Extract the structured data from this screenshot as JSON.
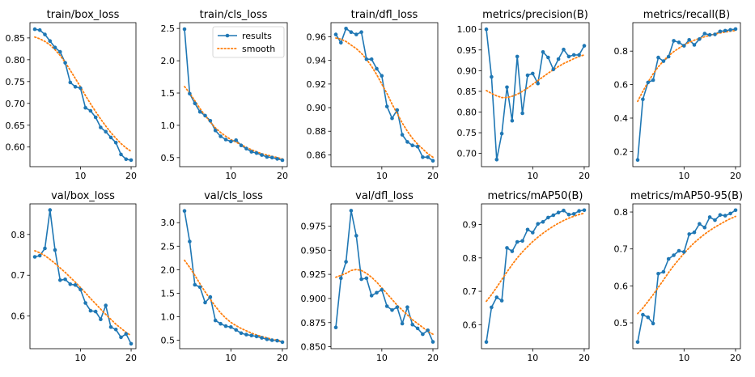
{
  "legend": {
    "results_label": "results",
    "smooth_label": "smooth"
  },
  "colors": {
    "results": "#1f77b4",
    "smooth": "#ff7f0e",
    "axes": "#000000",
    "background": "#ffffff"
  },
  "chart_data": [
    {
      "type": "line",
      "title": "train/box_loss",
      "x": [
        1,
        2,
        3,
        4,
        5,
        6,
        7,
        8,
        9,
        10,
        11,
        12,
        13,
        14,
        15,
        16,
        17,
        18,
        19,
        20
      ],
      "series": [
        {
          "name": "results",
          "values": [
            0.87,
            0.868,
            0.858,
            0.843,
            0.828,
            0.818,
            0.793,
            0.748,
            0.738,
            0.735,
            0.69,
            0.683,
            0.668,
            0.645,
            0.635,
            0.622,
            0.61,
            0.583,
            0.572,
            0.57
          ]
        },
        {
          "name": "smooth",
          "values": [
            0.852,
            0.848,
            0.842,
            0.834,
            0.823,
            0.81,
            0.794,
            0.776,
            0.757,
            0.738,
            0.718,
            0.699,
            0.681,
            0.664,
            0.648,
            0.633,
            0.62,
            0.608,
            0.598,
            0.59
          ]
        }
      ],
      "xlim": [
        0.05,
        20.95
      ],
      "ylim": [
        0.555,
        0.885
      ],
      "xticks": [
        10,
        20
      ],
      "yticks": [
        0.6,
        0.65,
        0.7,
        0.75,
        0.8,
        0.85
      ],
      "yticklabels": [
        "0.60",
        "0.65",
        "0.70",
        "0.75",
        "0.80",
        "0.85"
      ],
      "grid": false
    },
    {
      "type": "line",
      "title": "train/cls_loss",
      "legend_position": "top-right",
      "x": [
        1,
        2,
        3,
        4,
        5,
        6,
        7,
        8,
        9,
        10,
        11,
        12,
        13,
        14,
        15,
        16,
        17,
        18,
        19,
        20
      ],
      "series": [
        {
          "name": "results",
          "values": [
            2.49,
            1.49,
            1.34,
            1.21,
            1.15,
            1.07,
            0.92,
            0.83,
            0.78,
            0.75,
            0.77,
            0.69,
            0.64,
            0.59,
            0.57,
            0.54,
            0.51,
            0.5,
            0.48,
            0.46
          ]
        },
        {
          "name": "smooth",
          "values": [
            1.6,
            1.5,
            1.38,
            1.26,
            1.15,
            1.05,
            0.96,
            0.89,
            0.83,
            0.78,
            0.74,
            0.7,
            0.66,
            0.62,
            0.59,
            0.56,
            0.54,
            0.52,
            0.5,
            0.48
          ]
        }
      ],
      "xlim": [
        0.05,
        20.95
      ],
      "ylim": [
        0.36,
        2.59
      ],
      "xticks": [
        10,
        20
      ],
      "yticks": [
        0.5,
        1.0,
        1.5,
        2.0,
        2.5
      ],
      "yticklabels": [
        "0.5",
        "1.0",
        "1.5",
        "2.0",
        "2.5"
      ],
      "grid": false
    },
    {
      "type": "line",
      "title": "train/dfl_loss",
      "x": [
        1,
        2,
        3,
        4,
        5,
        6,
        7,
        8,
        9,
        10,
        11,
        12,
        13,
        14,
        15,
        16,
        17,
        18,
        19,
        20
      ],
      "series": [
        {
          "name": "results",
          "values": [
            0.962,
            0.955,
            0.967,
            0.964,
            0.962,
            0.964,
            0.941,
            0.941,
            0.933,
            0.927,
            0.901,
            0.891,
            0.898,
            0.877,
            0.871,
            0.868,
            0.867,
            0.858,
            0.858,
            0.855
          ]
        },
        {
          "name": "smooth",
          "values": [
            0.959,
            0.958,
            0.956,
            0.953,
            0.95,
            0.946,
            0.941,
            0.935,
            0.928,
            0.92,
            0.912,
            0.903,
            0.895,
            0.887,
            0.88,
            0.874,
            0.869,
            0.865,
            0.861,
            0.858
          ]
        }
      ],
      "xlim": [
        0.05,
        20.95
      ],
      "ylim": [
        0.85,
        0.972
      ],
      "xticks": [
        10,
        20
      ],
      "yticks": [
        0.86,
        0.88,
        0.9,
        0.92,
        0.94,
        0.96
      ],
      "yticklabels": [
        "0.86",
        "0.88",
        "0.90",
        "0.92",
        "0.94",
        "0.96"
      ],
      "grid": false
    },
    {
      "type": "line",
      "title": "metrics/precision(B)",
      "x": [
        1,
        2,
        3,
        4,
        5,
        6,
        7,
        8,
        9,
        10,
        11,
        12,
        13,
        14,
        15,
        16,
        17,
        18,
        19,
        20
      ],
      "series": [
        {
          "name": "results",
          "values": [
            1.0,
            0.885,
            0.685,
            0.748,
            0.86,
            0.779,
            0.934,
            0.797,
            0.889,
            0.893,
            0.869,
            0.945,
            0.932,
            0.903,
            0.928,
            0.951,
            0.934,
            0.938,
            0.938,
            0.96
          ]
        },
        {
          "name": "smooth",
          "values": [
            0.852,
            0.845,
            0.839,
            0.835,
            0.835,
            0.838,
            0.843,
            0.85,
            0.858,
            0.867,
            0.876,
            0.885,
            0.894,
            0.902,
            0.91,
            0.917,
            0.923,
            0.929,
            0.934,
            0.938
          ]
        }
      ],
      "xlim": [
        0.05,
        20.95
      ],
      "ylim": [
        0.668,
        1.016
      ],
      "xticks": [
        10,
        20
      ],
      "yticks": [
        0.7,
        0.75,
        0.8,
        0.85,
        0.9,
        0.95,
        1.0
      ],
      "yticklabels": [
        "0.70",
        "0.75",
        "0.80",
        "0.85",
        "0.90",
        "0.95",
        "1.00"
      ],
      "grid": false
    },
    {
      "type": "line",
      "title": "metrics/recall(B)",
      "x": [
        1,
        2,
        3,
        4,
        5,
        6,
        7,
        8,
        9,
        10,
        11,
        12,
        13,
        14,
        15,
        16,
        17,
        18,
        19,
        20
      ],
      "series": [
        {
          "name": "results",
          "values": [
            0.15,
            0.512,
            0.613,
            0.627,
            0.762,
            0.74,
            0.767,
            0.862,
            0.852,
            0.832,
            0.867,
            0.837,
            0.872,
            0.905,
            0.897,
            0.9,
            0.918,
            0.922,
            0.927,
            0.932
          ]
        },
        {
          "name": "smooth",
          "values": [
            0.5,
            0.56,
            0.615,
            0.664,
            0.706,
            0.742,
            0.772,
            0.797,
            0.818,
            0.836,
            0.852,
            0.865,
            0.876,
            0.886,
            0.894,
            0.902,
            0.908,
            0.914,
            0.919,
            0.923
          ]
        }
      ],
      "xlim": [
        0.05,
        20.95
      ],
      "ylim": [
        0.11,
        0.97
      ],
      "xticks": [
        10,
        20
      ],
      "yticks": [
        0.2,
        0.4,
        0.6,
        0.8
      ],
      "yticklabels": [
        "0.2",
        "0.4",
        "0.6",
        "0.8"
      ],
      "grid": false
    },
    {
      "type": "line",
      "title": "val/box_loss",
      "x": [
        1,
        2,
        3,
        4,
        5,
        6,
        7,
        8,
        9,
        10,
        11,
        12,
        13,
        14,
        15,
        16,
        17,
        18,
        19,
        20
      ],
      "series": [
        {
          "name": "results",
          "values": [
            0.745,
            0.748,
            0.766,
            0.86,
            0.762,
            0.688,
            0.69,
            0.678,
            0.676,
            0.665,
            0.632,
            0.613,
            0.611,
            0.592,
            0.626,
            0.573,
            0.567,
            0.548,
            0.556,
            0.532
          ]
        },
        {
          "name": "smooth",
          "values": [
            0.76,
            0.755,
            0.748,
            0.739,
            0.729,
            0.718,
            0.707,
            0.695,
            0.683,
            0.67,
            0.657,
            0.643,
            0.63,
            0.617,
            0.604,
            0.592,
            0.58,
            0.57,
            0.56,
            0.552
          ]
        }
      ],
      "xlim": [
        0.05,
        20.95
      ],
      "ylim": [
        0.52,
        0.875
      ],
      "xticks": [
        10,
        20
      ],
      "yticks": [
        0.6,
        0.7,
        0.8
      ],
      "yticklabels": [
        "0.6",
        "0.7",
        "0.8"
      ],
      "grid": false
    },
    {
      "type": "line",
      "title": "val/cls_loss",
      "x": [
        1,
        2,
        3,
        4,
        5,
        6,
        7,
        8,
        9,
        10,
        11,
        12,
        13,
        14,
        15,
        16,
        17,
        18,
        19,
        20
      ],
      "series": [
        {
          "name": "results",
          "values": [
            3.25,
            2.6,
            1.68,
            1.63,
            1.3,
            1.42,
            0.92,
            0.85,
            0.8,
            0.78,
            0.72,
            0.65,
            0.62,
            0.6,
            0.58,
            0.55,
            0.52,
            0.5,
            0.49,
            0.46
          ]
        },
        {
          "name": "smooth",
          "values": [
            2.2,
            2.05,
            1.88,
            1.7,
            1.53,
            1.37,
            1.22,
            1.08,
            0.97,
            0.88,
            0.81,
            0.75,
            0.7,
            0.65,
            0.61,
            0.58,
            0.55,
            0.52,
            0.5,
            0.48
          ]
        }
      ],
      "xlim": [
        0.05,
        20.95
      ],
      "ylim": [
        0.32,
        3.4
      ],
      "xticks": [
        10,
        20
      ],
      "yticks": [
        0.5,
        1.0,
        1.5,
        2.0,
        2.5,
        3.0
      ],
      "yticklabels": [
        "0.5",
        "1.0",
        "1.5",
        "2.0",
        "2.5",
        "3.0"
      ],
      "grid": false
    },
    {
      "type": "line",
      "title": "val/dfl_loss",
      "x": [
        1,
        2,
        3,
        4,
        5,
        6,
        7,
        8,
        9,
        10,
        11,
        12,
        13,
        14,
        15,
        16,
        17,
        18,
        19,
        20
      ],
      "series": [
        {
          "name": "results",
          "values": [
            0.87,
            0.921,
            0.938,
            0.991,
            0.965,
            0.92,
            0.921,
            0.903,
            0.906,
            0.909,
            0.892,
            0.888,
            0.891,
            0.874,
            0.891,
            0.873,
            0.869,
            0.863,
            0.867,
            0.855
          ]
        },
        {
          "name": "smooth",
          "values": [
            0.922,
            0.924,
            0.926,
            0.929,
            0.93,
            0.929,
            0.926,
            0.922,
            0.917,
            0.911,
            0.905,
            0.899,
            0.893,
            0.888,
            0.883,
            0.878,
            0.874,
            0.87,
            0.866,
            0.863
          ]
        }
      ],
      "xlim": [
        0.05,
        20.95
      ],
      "ylim": [
        0.848,
        0.998
      ],
      "xticks": [
        10,
        20
      ],
      "yticks": [
        0.85,
        0.875,
        0.9,
        0.925,
        0.95,
        0.975
      ],
      "yticklabels": [
        "0.850",
        "0.875",
        "0.900",
        "0.925",
        "0.950",
        "0.975"
      ],
      "grid": false
    },
    {
      "type": "line",
      "title": "metrics/mAP50(B)",
      "x": [
        1,
        2,
        3,
        4,
        5,
        6,
        7,
        8,
        9,
        10,
        11,
        12,
        13,
        14,
        15,
        16,
        17,
        18,
        19,
        20
      ],
      "series": [
        {
          "name": "results",
          "values": [
            0.548,
            0.652,
            0.682,
            0.672,
            0.83,
            0.82,
            0.848,
            0.851,
            0.885,
            0.876,
            0.902,
            0.908,
            0.921,
            0.928,
            0.936,
            0.942,
            0.93,
            0.932,
            0.941,
            0.943
          ]
        },
        {
          "name": "smooth",
          "values": [
            0.67,
            0.69,
            0.712,
            0.735,
            0.758,
            0.78,
            0.8,
            0.818,
            0.834,
            0.849,
            0.862,
            0.874,
            0.885,
            0.895,
            0.904,
            0.912,
            0.919,
            0.925,
            0.93,
            0.934
          ]
        }
      ],
      "xlim": [
        0.05,
        20.95
      ],
      "ylim": [
        0.528,
        0.962
      ],
      "xticks": [
        10,
        20
      ],
      "yticks": [
        0.6,
        0.7,
        0.8,
        0.9
      ],
      "yticklabels": [
        "0.6",
        "0.7",
        "0.8",
        "0.9"
      ],
      "grid": false
    },
    {
      "type": "line",
      "title": "metrics/mAP50-95(B)",
      "x": [
        1,
        2,
        3,
        4,
        5,
        6,
        7,
        8,
        9,
        10,
        11,
        12,
        13,
        14,
        15,
        16,
        17,
        18,
        19,
        20
      ],
      "series": [
        {
          "name": "results",
          "values": [
            0.448,
            0.522,
            0.515,
            0.498,
            0.633,
            0.638,
            0.673,
            0.683,
            0.695,
            0.692,
            0.74,
            0.745,
            0.768,
            0.758,
            0.786,
            0.778,
            0.792,
            0.79,
            0.796,
            0.805
          ]
        },
        {
          "name": "smooth",
          "values": [
            0.525,
            0.54,
            0.558,
            0.576,
            0.596,
            0.616,
            0.636,
            0.655,
            0.672,
            0.688,
            0.703,
            0.717,
            0.729,
            0.74,
            0.75,
            0.759,
            0.767,
            0.775,
            0.782,
            0.788
          ]
        }
      ],
      "xlim": [
        0.05,
        20.95
      ],
      "ylim": [
        0.43,
        0.822
      ],
      "xticks": [
        10,
        20
      ],
      "yticks": [
        0.5,
        0.6,
        0.7,
        0.8
      ],
      "yticklabels": [
        "0.5",
        "0.6",
        "0.7",
        "0.8"
      ],
      "grid": false
    }
  ]
}
